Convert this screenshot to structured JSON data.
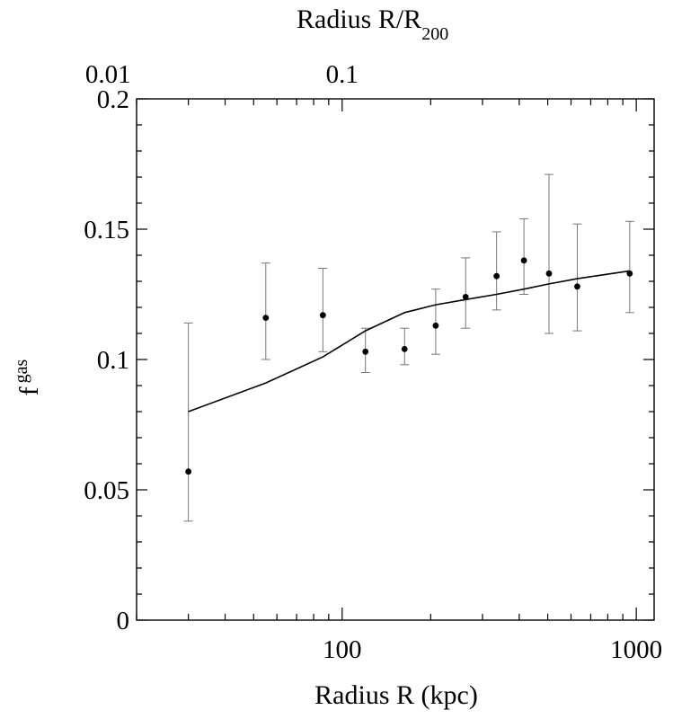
{
  "chart_data": {
    "type": "scatter",
    "xscale": "log",
    "xlim": [
      20,
      1150
    ],
    "ylim": [
      0,
      0.2
    ],
    "x_ticks_major": [
      100,
      1000
    ],
    "x_tick_labels": [
      "100",
      "1000"
    ],
    "y_ticks": [
      0,
      0.05,
      0.1,
      0.15,
      0.2
    ],
    "y_tick_labels": [
      "0",
      "0.05",
      "0.1",
      "0.15",
      "0.2"
    ],
    "top_axis": {
      "label_main": "Radius R/R",
      "label_sub": "200",
      "ticks": [
        16,
        100
      ],
      "tick_labels": [
        "0.01",
        "0.1"
      ]
    },
    "xlabel": "Radius R (kpc)",
    "ylabel_main": "f",
    "ylabel_sub": "gas",
    "grid": false,
    "series": [
      {
        "type": "points-with-errors",
        "x": [
          30,
          55,
          86,
          120,
          163,
          208,
          263,
          335,
          415,
          505,
          630,
          950
        ],
        "y": [
          0.057,
          0.116,
          0.117,
          0.103,
          0.104,
          0.113,
          0.124,
          0.132,
          0.138,
          0.133,
          0.128,
          0.133
        ],
        "y_low": [
          0.038,
          0.1,
          0.103,
          0.095,
          0.098,
          0.102,
          0.112,
          0.119,
          0.125,
          0.11,
          0.111,
          0.118
        ],
        "y_high": [
          0.114,
          0.137,
          0.135,
          0.112,
          0.112,
          0.127,
          0.139,
          0.149,
          0.154,
          0.171,
          0.152,
          0.153
        ]
      },
      {
        "type": "line",
        "x": [
          30,
          55,
          86,
          120,
          163,
          208,
          263,
          335,
          415,
          505,
          630,
          950
        ],
        "y": [
          0.08,
          0.091,
          0.101,
          0.111,
          0.118,
          0.121,
          0.123,
          0.125,
          0.127,
          0.129,
          0.131,
          0.134
        ]
      }
    ]
  }
}
